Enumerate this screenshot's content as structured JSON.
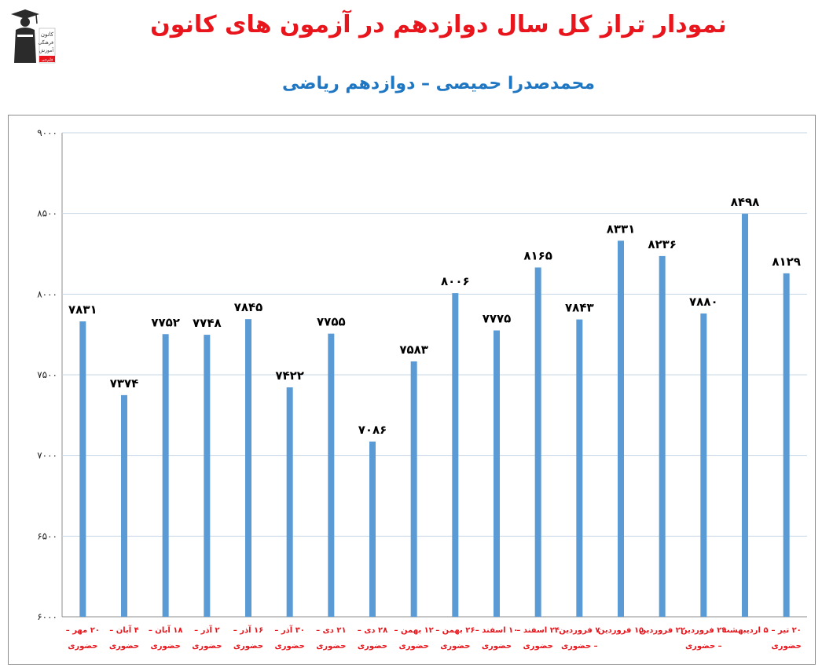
{
  "header": {
    "title": "نمودار تراز کل سال دوازدهم در آزمون های کانون",
    "subtitle": "محمدصدرا حمیصی – دوازدهم ریاضی",
    "logo": {
      "line1": "کانون",
      "line2": "فرهنگی",
      "line3": "آموزش",
      "badge": "قلم‌چی"
    }
  },
  "colors": {
    "bar": "#5b9bd5",
    "title": "#e8161c",
    "subtitle": "#1f76c2",
    "category_label": "#e8161c",
    "grid": "#c5d5e6"
  },
  "chart_data": {
    "type": "bar",
    "title": "",
    "xlabel": "",
    "ylabel": "",
    "ylim": [
      6000,
      9000
    ],
    "y_ticks": [
      "۶۰۰۰",
      "۶۵۰۰",
      "۷۰۰۰",
      "۷۵۰۰",
      "۸۰۰۰",
      "۸۵۰۰",
      "۹۰۰۰"
    ],
    "y_tick_values": [
      6000,
      6500,
      7000,
      7500,
      8000,
      8500,
      9000
    ],
    "grid": true,
    "legend": "none",
    "categories": [
      [
        "۲۰ مهر –",
        "حضوری"
      ],
      [
        "۴ آبان –",
        "حضوری"
      ],
      [
        "۱۸ آبان –",
        "حضوری"
      ],
      [
        "۲ آذر –",
        "حضوری"
      ],
      [
        "۱۶ آذر –",
        "حضوری"
      ],
      [
        "۳۰ آذر –",
        "حضوری"
      ],
      [
        "۲۱ دی –",
        "حضوری"
      ],
      [
        "۲۸ دی –",
        "حضوری"
      ],
      [
        "۱۲ بهمن –",
        "حضوری"
      ],
      [
        "۲۶ بهمن –",
        "حضوری"
      ],
      [
        "۱۰ اسفند –",
        "حضوری"
      ],
      [
        "۲۴ اسفند –",
        "حضوری"
      ],
      [
        "۷ فروردین",
        "– حضوری"
      ],
      [
        "۱۵ فروردین",
        ""
      ],
      [
        "۲۲ فروردین",
        ""
      ],
      [
        "۲۹ فروردین",
        "– حضوری"
      ],
      [
        "۵ اردیبهشت",
        ""
      ],
      [
        "۲۰ تیر –",
        "حضوری"
      ]
    ],
    "values": [
      7831,
      7374,
      7752,
      7748,
      7845,
      7422,
      7755,
      7086,
      7583,
      8006,
      7775,
      8165,
      7843,
      8331,
      8236,
      7880,
      8498,
      8129
    ],
    "value_labels": [
      "۷۸۳۱",
      "۷۳۷۴",
      "۷۷۵۲",
      "۷۷۴۸",
      "۷۸۴۵",
      "۷۴۲۲",
      "۷۷۵۵",
      "۷۰۸۶",
      "۷۵۸۳",
      "۸۰۰۶",
      "۷۷۷۵",
      "۸۱۶۵",
      "۷۸۴۳",
      "۸۳۳۱",
      "۸۲۳۶",
      "۷۸۸۰",
      "۸۴۹۸",
      "۸۱۲۹"
    ]
  }
}
